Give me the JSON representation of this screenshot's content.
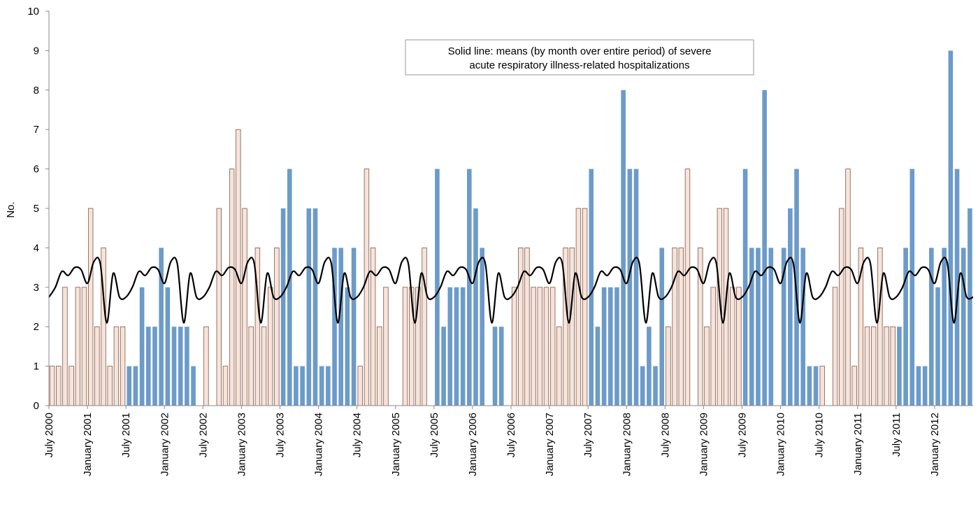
{
  "chart_data": {
    "type": "bar",
    "title": "",
    "xlabel": "",
    "ylabel": "No.",
    "ylim": [
      0,
      10
    ],
    "yticks": [
      0,
      1,
      2,
      3,
      4,
      5,
      6,
      7,
      8,
      9,
      10
    ],
    "grid": false,
    "legend": "top-center",
    "annotation": {
      "lines": [
        "Solid line: means (by month over entire period) of severe",
        "acute respiratory illness-related hospitalizations"
      ]
    },
    "colors": {
      "season_a": "#f8e3d8",
      "season_b": "#6c9bc9",
      "bar_edge": "#7a5a50",
      "mean_line": "#000000",
      "axis": "#888888"
    },
    "x_tick_labels": [
      "July 2000",
      "January 2001",
      "July 2001",
      "January 2002",
      "July 2002",
      "January 2003",
      "July 2003",
      "January 2004",
      "July 2004",
      "January 2005",
      "July 2005",
      "January 2006",
      "July 2006",
      "January 2007",
      "July 2007",
      "January 2008",
      "July 2008",
      "January 2009",
      "July 2009",
      "January 2010",
      "July 2010",
      "January 2011",
      "July 2011",
      "January 2012"
    ],
    "months_start": "July 2000",
    "series": [
      {
        "name": "",
        "values": [
          1,
          1,
          3,
          1,
          3,
          3,
          5,
          2,
          4,
          1,
          2,
          2,
          1,
          1,
          3,
          2,
          2,
          4,
          3,
          2,
          2,
          2,
          1,
          0,
          2,
          0,
          5,
          1,
          6,
          7,
          5,
          2,
          4,
          2,
          3,
          4,
          5,
          6,
          1,
          1,
          5,
          5,
          1,
          1,
          4,
          4,
          3,
          4,
          1,
          6,
          4,
          2,
          3,
          0,
          0,
          3,
          3,
          3,
          4,
          0,
          6,
          2,
          3,
          3,
          3,
          6,
          5,
          4,
          0,
          2,
          2,
          0,
          3,
          4,
          4,
          3,
          3,
          3,
          3,
          2,
          4,
          4,
          5,
          5,
          6,
          2,
          3,
          3,
          3,
          8,
          6,
          6,
          1,
          2,
          1,
          4,
          2,
          4,
          4,
          6,
          0,
          4,
          2,
          3,
          5,
          5,
          3,
          3,
          6,
          4,
          4,
          8,
          4,
          0,
          4,
          5,
          6,
          4,
          1,
          1,
          1,
          0,
          3,
          5,
          6,
          1,
          4,
          2,
          2,
          4,
          2,
          2,
          2,
          4,
          6,
          1,
          1,
          4,
          3,
          4,
          9,
          6,
          4,
          5
        ],
        "season": [
          0,
          0,
          0,
          0,
          0,
          0,
          0,
          0,
          0,
          0,
          0,
          0,
          1,
          1,
          1,
          1,
          1,
          1,
          1,
          1,
          1,
          1,
          1,
          1,
          0,
          0,
          0,
          0,
          0,
          0,
          0,
          0,
          0,
          0,
          0,
          0,
          1,
          1,
          1,
          1,
          1,
          1,
          1,
          1,
          1,
          1,
          1,
          1,
          0,
          0,
          0,
          0,
          0,
          0,
          0,
          0,
          0,
          0,
          0,
          0,
          1,
          1,
          1,
          1,
          1,
          1,
          1,
          1,
          1,
          1,
          1,
          1,
          0,
          0,
          0,
          0,
          0,
          0,
          0,
          0,
          0,
          0,
          0,
          0,
          1,
          1,
          1,
          1,
          1,
          1,
          1,
          1,
          1,
          1,
          1,
          1,
          0,
          0,
          0,
          0,
          0,
          0,
          0,
          0,
          0,
          0,
          0,
          0,
          1,
          1,
          1,
          1,
          1,
          1,
          1,
          1,
          1,
          1,
          1,
          1,
          0,
          0,
          0,
          0,
          0,
          0,
          0,
          0,
          0,
          0,
          0,
          0,
          1,
          1,
          1,
          1,
          1,
          1,
          1,
          1,
          1,
          1,
          1,
          1
        ]
      },
      {
        "name": "",
        "type": "line",
        "values": [
          2.75,
          3.0,
          3.4,
          3.3,
          3.5,
          3.45,
          3.1,
          3.65,
          3.6,
          2.1,
          3.35,
          2.75
        ]
      }
    ]
  }
}
